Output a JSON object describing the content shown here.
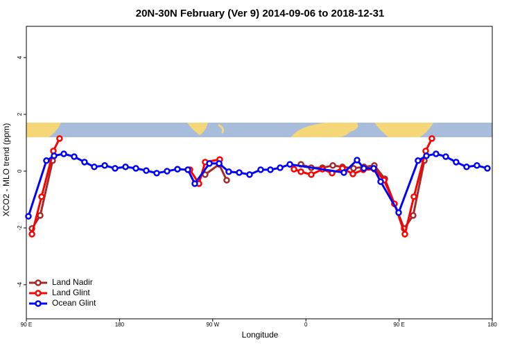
{
  "chart_data": {
    "type": "line",
    "title": "20N-30N February (Ver 9)   2014-09-06 to 2018-12-31",
    "x_label": "Longitude",
    "y_label": "XCO2 - MLO trend (ppm)",
    "xlim": [
      90,
      540
    ],
    "xticks": [
      {
        "value": 90,
        "label": "90 E"
      },
      {
        "value": 180,
        "label": "180"
      },
      {
        "value": 270,
        "label": "90 W"
      },
      {
        "value": 360,
        "label": "0"
      },
      {
        "value": 450,
        "label": "90 E"
      },
      {
        "value": 540,
        "label": "180"
      }
    ],
    "ylim": [
      -5.2,
      5.1
    ],
    "yticks": [
      -4,
      -2,
      0,
      2,
      4
    ],
    "legend": "bottom-left",
    "series": [
      {
        "name": "Land Nadir",
        "color": "#a52a2a",
        "x": [
          95.4,
          103.4,
          115.4,
          190,
          262.7,
          276.2,
          283.5,
          320,
          355.2,
          365.2,
          376,
          386,
          395.3,
          406,
          416.1,
          426.1,
          436.2,
          445.5,
          454.9,
          463.6,
          474.4
        ],
        "values": [
          -2.02,
          -1.56,
          0.37,
          null,
          -0.12,
          0.24,
          -0.32,
          null,
          0.24,
          0.12,
          0.12,
          0.2,
          0.15,
          0.1,
          0.15,
          0.2,
          -0.27,
          -1.15,
          -2.02,
          -1.56,
          0.37
        ]
      },
      {
        "name": "Land Glint",
        "color": "#ff0000",
        "x": [
          95.4,
          104.7,
          116.1,
          122.1,
          190,
          248,
          256.7,
          262.7,
          276.8,
          320,
          348.5,
          355.2,
          365.2,
          376,
          385.3,
          395.3,
          405.4,
          415.4,
          426.1,
          435.5,
          445.5,
          455.6,
          464.3,
          475.7,
          481.7
        ],
        "values": [
          -2.22,
          -0.9,
          0.71,
          1.15,
          null,
          0.05,
          -0.44,
          0.32,
          0.41,
          null,
          0.07,
          -0.02,
          -0.12,
          0.07,
          -0.07,
          0.1,
          -0.1,
          0.05,
          0.07,
          -0.32,
          -1.15,
          -2.22,
          -0.9,
          0.71,
          1.15
        ]
      },
      {
        "name": "Ocean Glint",
        "color": "#0000ff",
        "x": [
          92,
          109.4,
          116.8,
          126.2,
          136.2,
          146.2,
          155.6,
          165.7,
          175.7,
          185.8,
          195.8,
          205.8,
          215.9,
          225.9,
          236,
          246,
          252.7,
          266.8,
          276.2,
          285.5,
          295.6,
          305.6,
          316.3,
          325.7,
          335.1,
          344.5,
          396.7,
          409.4,
          416,
          425.5,
          432.2,
          449.6,
          468.3,
          476.4,
          485.7,
          495.1,
          505.1,
          515.2,
          525.2,
          535.3
        ],
        "values": [
          -1.59,
          0.37,
          0.54,
          0.61,
          0.51,
          0.32,
          0.15,
          0.2,
          0.1,
          0.15,
          0.1,
          0.02,
          -0.07,
          0,
          0.07,
          0.05,
          -0.44,
          0.27,
          0.27,
          -0.02,
          -0.05,
          -0.12,
          0.05,
          0.05,
          0.12,
          0.24,
          -0.05,
          0.39,
          0.1,
          0.1,
          -0.37,
          -1.46,
          0.37,
          0.54,
          0.61,
          0.51,
          0.32,
          0.15,
          0.2,
          0.1
        ]
      }
    ]
  }
}
